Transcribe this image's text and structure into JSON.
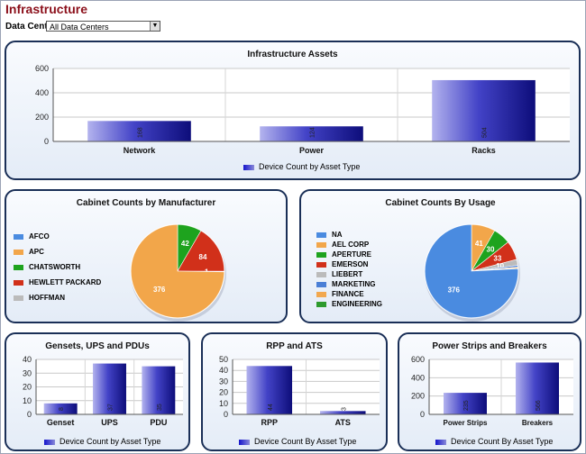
{
  "page": {
    "title": "Infrastructure",
    "data_center_label": "Data Center:",
    "data_center_value": "All Data Centers"
  },
  "colors": {
    "title": "#8b0f1a",
    "panel_border": "#1a2f57",
    "bar_dark": "#0d0d7a",
    "bar_light": "#b3b3ee"
  },
  "panels": {
    "assets": {
      "title": "Infrastructure Assets",
      "legend": "Device Count by Asset Type"
    },
    "manufacturer": {
      "title": "Cabinet Counts by Manufacturer"
    },
    "usage": {
      "title": "Cabinet Counts By Usage"
    },
    "gensets": {
      "title": "Gensets, UPS and PDUs",
      "legend": "Device Count by Asset Type"
    },
    "rpp": {
      "title": "RPP and ATS",
      "legend": "Device Count By Asset Type"
    },
    "strips": {
      "title": "Power Strips and Breakers",
      "legend": "Device Count By Asset Type"
    }
  },
  "chart_data": [
    {
      "id": "assets",
      "type": "bar",
      "title": "Infrastructure Assets",
      "categories": [
        "Network",
        "Power",
        "Racks"
      ],
      "series": [
        {
          "name": "Device Count by Asset Type",
          "values": [
            168,
            124,
            504
          ]
        }
      ],
      "ylim": [
        0,
        600
      ],
      "yticks": [
        0,
        200,
        400,
        600
      ],
      "grid": true,
      "legend": "bottom"
    },
    {
      "id": "manufacturer",
      "type": "pie",
      "title": "Cabinet Counts by Manufacturer",
      "labels": [
        "AFCO",
        "APC",
        "CHATSWORTH",
        "HEWLETT PACKARD",
        "HOFFMAN"
      ],
      "values": [
        0,
        376,
        42,
        84,
        1
      ],
      "colors": [
        "#4a8be0",
        "#f2a64a",
        "#1ea31e",
        "#d1301a",
        "#bbbbbb"
      ],
      "legend": "left"
    },
    {
      "id": "usage",
      "type": "pie",
      "title": "Cabinet Counts By Usage",
      "labels": [
        "NA",
        "AEL CORP",
        "APERTURE",
        "EMERSON",
        "LIEBERT",
        "MARKETING",
        "FINANCE",
        "ENGINEERING"
      ],
      "values": [
        376,
        41,
        30,
        33,
        10,
        3,
        2,
        1
      ],
      "data_labels": [
        "376",
        "41",
        "30",
        "33",
        "10",
        "",
        "",
        ""
      ],
      "colors": [
        "#4a8be0",
        "#f2a64a",
        "#1ea31e",
        "#d1301a",
        "#bbbbbb",
        "#4a7fd6",
        "#f2a84f",
        "#2d9a2d"
      ],
      "legend": "left"
    },
    {
      "id": "gensets",
      "type": "bar",
      "title": "Gensets, UPS and PDUs",
      "categories": [
        "Genset",
        "UPS",
        "PDU"
      ],
      "series": [
        {
          "name": "Device Count by Asset Type",
          "values": [
            8,
            37,
            35
          ]
        }
      ],
      "data_labels": [
        "8",
        "37",
        "35"
      ],
      "ylim": [
        0,
        40
      ],
      "yticks": [
        0,
        10,
        20,
        30,
        40
      ],
      "grid": true,
      "legend": "bottom"
    },
    {
      "id": "rpp",
      "type": "bar",
      "title": "RPP and ATS",
      "categories": [
        "RPP",
        "ATS"
      ],
      "series": [
        {
          "name": "Device Count By Asset Type",
          "values": [
            44,
            3
          ]
        }
      ],
      "data_labels": [
        "44",
        "3"
      ],
      "ylim": [
        0,
        50
      ],
      "yticks": [
        0,
        10,
        20,
        30,
        40,
        50
      ],
      "grid": true,
      "legend": "bottom"
    },
    {
      "id": "strips",
      "type": "bar",
      "title": "Power Strips and Breakers",
      "categories": [
        "Power Strips",
        "Breakers"
      ],
      "series": [
        {
          "name": "Device Count By Asset Type",
          "values": [
            235,
            566
          ]
        }
      ],
      "data_labels": [
        "235",
        "566"
      ],
      "ylim": [
        0,
        600
      ],
      "yticks": [
        0,
        200,
        400,
        600
      ],
      "grid": true,
      "legend": "bottom"
    }
  ]
}
